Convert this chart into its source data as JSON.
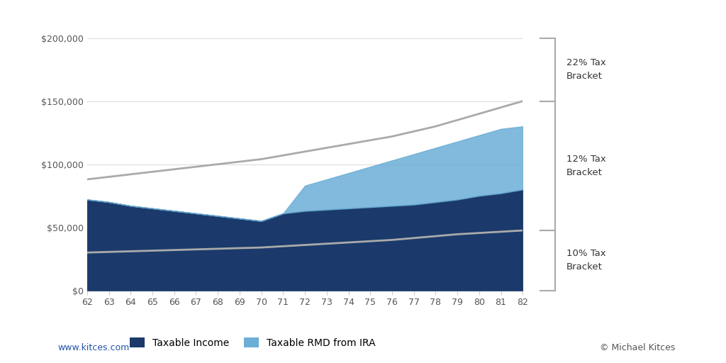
{
  "ages": [
    62,
    63,
    64,
    65,
    66,
    67,
    68,
    69,
    70,
    71,
    72,
    73,
    74,
    75,
    76,
    77,
    78,
    79,
    80,
    81,
    82
  ],
  "taxable_income": [
    72000,
    70000,
    67000,
    65000,
    63000,
    61000,
    59000,
    57000,
    55000,
    61000,
    63000,
    64000,
    65000,
    66000,
    67000,
    68000,
    70000,
    72000,
    75000,
    77000,
    80000
  ],
  "rmd_income": [
    0,
    0,
    0,
    0,
    0,
    0,
    0,
    0,
    0,
    0,
    20000,
    24000,
    28000,
    32000,
    36000,
    40000,
    43000,
    46000,
    48000,
    51000,
    50000
  ],
  "bracket_10_upper": [
    30000,
    30500,
    31000,
    31500,
    32000,
    32500,
    33000,
    33500,
    34000,
    35000,
    36000,
    37000,
    38000,
    39000,
    40000,
    41500,
    43000,
    44500,
    45500,
    46500,
    47500
  ],
  "bracket_12_upper": [
    88000,
    90000,
    92000,
    94000,
    96000,
    98000,
    100000,
    102000,
    104000,
    107000,
    110000,
    113000,
    116000,
    119000,
    122000,
    126000,
    130000,
    135000,
    140000,
    145000,
    150000
  ],
  "ylim": [
    0,
    210000
  ],
  "yticks": [
    0,
    50000,
    100000,
    150000,
    200000
  ],
  "ytick_labels": [
    "$0",
    "$50,000",
    "$100,000",
    "$150,000",
    "$200,000"
  ],
  "taxable_income_color": "#1B3A6B",
  "rmd_color": "#6BAED6",
  "bracket_line_color": "#AAAAAA",
  "background_color": "#FFFFFF",
  "legend_taxable_label": "Taxable Income",
  "legend_rmd_label": "Taxable RMD from IRA",
  "bracket_22_label": "22% Tax\nBracket",
  "bracket_12_label": "12% Tax\nBracket",
  "bracket_10_label": "10% Tax\nBracket",
  "footer_left": "www.kitces.com",
  "footer_right": "© Michael Kitces"
}
